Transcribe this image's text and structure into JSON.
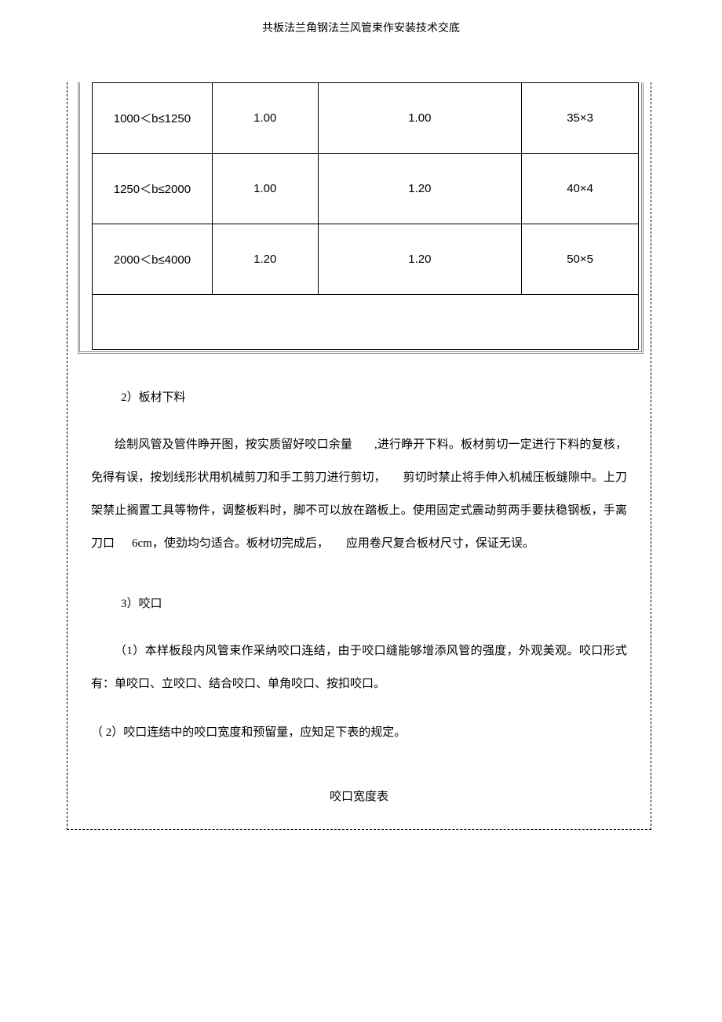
{
  "header": {
    "title": "共板法兰角钢法兰风管束作安装技术交底"
  },
  "table1": {
    "rows": [
      {
        "c1": "1000＜b≤1250",
        "c2": "1.00",
        "c3": "1.00",
        "c4": "35×3"
      },
      {
        "c1": "1250＜b≤2000",
        "c2": "1.00",
        "c3": "1.20",
        "c4": "40×4"
      },
      {
        "c1": "2000＜b≤4000",
        "c2": "1.20",
        "c3": "1.20",
        "c4": "50×5"
      }
    ]
  },
  "sections": {
    "s2_num": "2）板材下料",
    "s2_para": "绘制风管及管件睁开图，按实质留好咬口余量",
    "s2_para_cont": ",进行睁开下料。板材剪切一定进行下料的复核，免得有误，按划线形状用机械剪刀和手工剪刀进行剪切，",
    "s2_para_cont2": "剪切时禁止将手伸入机械压板缝隙中。上刀架禁止搁置工具等物件，调整板料时，脚不可以放在踏板上。使用固定式震动剪两手要扶稳钢板，手离刀口",
    "s2_para_6cm": "6cm，使劲均匀适合。板材切完成后，",
    "s2_para_cont3": "应用卷尺复合板材尺寸，保证无误。",
    "s3_num": "3）咬口",
    "s3_item1": "（1）本样板段内风管束作采纳咬口连结，由于咬口缝能够增添风管的强度，外观美观。咬口形式有：单咬口、立咬口、结合咬口、单角咬口、按扣咬口。",
    "s3_item2": "（ 2）咬口连结中的咬口宽度和预留量，应知足下表的规定。",
    "table2_title": "咬口宽度表"
  }
}
